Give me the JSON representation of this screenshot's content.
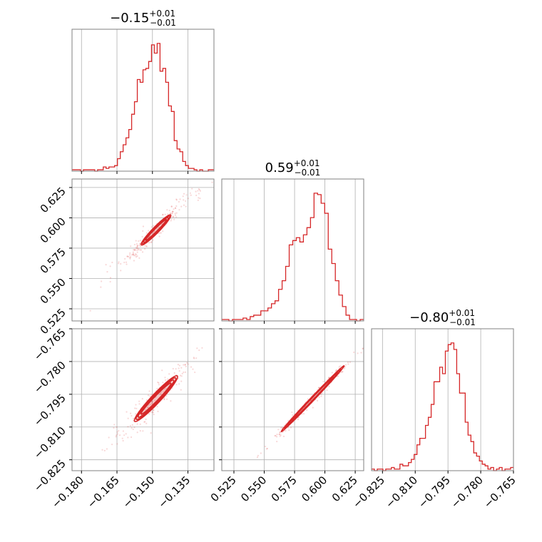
{
  "chart_data": {
    "type": "corner",
    "line_color": "#d62728",
    "grid": true,
    "parameters": [
      {
        "title_value": "−0.15",
        "title_plus": "+0.01",
        "title_minus": "−0.01",
        "range": [
          -0.184,
          -0.124
        ],
        "ticks": [
          -0.18,
          -0.165,
          -0.15,
          -0.135
        ],
        "tick_labels": [
          "−0.180",
          "−0.165",
          "−0.150",
          "−0.135"
        ]
      },
      {
        "title_value": "0.59",
        "title_plus": "+0.01",
        "title_minus": "−0.01",
        "range": [
          0.515,
          0.632
        ],
        "ticks": [
          0.525,
          0.55,
          0.575,
          0.6,
          0.625
        ],
        "tick_labels": [
          "0.525",
          "0.550",
          "0.575",
          "0.600",
          "0.625"
        ]
      },
      {
        "title_value": "−0.80",
        "title_plus": "+0.01",
        "title_minus": "−0.01",
        "range": [
          -0.83,
          -0.765
        ],
        "ticks": [
          -0.825,
          -0.81,
          -0.795,
          -0.78,
          -0.765
        ],
        "tick_labels": [
          "−0.825",
          "−0.810",
          "−0.795",
          "−0.780",
          "−0.765"
        ]
      }
    ],
    "histograms": [
      {
        "param": 0,
        "edges_start": -0.184,
        "edges_end": -0.124,
        "counts": [
          1,
          1,
          1,
          0,
          1,
          1,
          1,
          1,
          0,
          1,
          1,
          3,
          2,
          3,
          3,
          4,
          9,
          14,
          19,
          24,
          30,
          41,
          50,
          66,
          64,
          73,
          74,
          79,
          91,
          85,
          92,
          72,
          74,
          64,
          47,
          43,
          22,
          16,
          14,
          7,
          4,
          2,
          2,
          1,
          0,
          1,
          0,
          0,
          1,
          1
        ]
      },
      {
        "param": 1,
        "edges_start": 0.515,
        "edges_end": 0.632,
        "counts": [
          1,
          1,
          0,
          1,
          1,
          1,
          2,
          1,
          3,
          4,
          4,
          7,
          7,
          9,
          12,
          14,
          22,
          28,
          38,
          53,
          56,
          58,
          55,
          60,
          65,
          72,
          89,
          88,
          82,
          75,
          50,
          40,
          28,
          18,
          10,
          4,
          1,
          1,
          0,
          1
        ]
      },
      {
        "param": 2,
        "edges_start": -0.83,
        "edges_end": -0.765,
        "counts": [
          1,
          0,
          1,
          1,
          0,
          1,
          1,
          2,
          1,
          1,
          4,
          3,
          3,
          5,
          7,
          10,
          16,
          20,
          20,
          28,
          33,
          41,
          55,
          55,
          64,
          60,
          74,
          78,
          79,
          75,
          60,
          48,
          48,
          30,
          22,
          18,
          11,
          9,
          6,
          4,
          3,
          1,
          2,
          0,
          1,
          2,
          0,
          1,
          1,
          2
        ]
      }
    ],
    "pairs": [
      {
        "x_param": 0,
        "y_param": 1,
        "center": [
          -0.1485,
          0.59
        ],
        "slope": 1.9,
        "contours": [
          {
            "half_length": 0.0095,
            "half_width": 0.0016
          },
          {
            "half_length": 0.0112,
            "half_width": 0.0025
          },
          {
            "half_length": 0.0125,
            "half_width": 0.003
          },
          {
            "half_length": 0.0135,
            "half_width": 0.0036
          }
        ],
        "scatter_range": [
          -0.178,
          -0.124
        ]
      },
      {
        "x_param": 0,
        "y_param": 2,
        "center": [
          -0.1485,
          -0.797
        ],
        "slope": 1.1,
        "contours": [
          {
            "half_length": 0.0095,
            "half_width": 0.0014
          },
          {
            "half_length": 0.0112,
            "half_width": 0.002
          },
          {
            "half_length": 0.0125,
            "half_width": 0.0025
          },
          {
            "half_length": 0.0136,
            "half_width": 0.003
          }
        ],
        "scatter_range": [
          -0.176,
          -0.126
        ]
      },
      {
        "x_param": 1,
        "y_param": 2,
        "center": [
          0.59,
          -0.797
        ],
        "slope": 0.58,
        "contours": [
          {
            "half_length": 0.02,
            "half_width": 0.0006
          },
          {
            "half_length": 0.024,
            "half_width": 0.0008
          },
          {
            "half_length": 0.027,
            "half_width": 0.001
          },
          {
            "half_length": 0.03,
            "half_width": 0.0012
          }
        ],
        "scatter_range": [
          0.535,
          0.632
        ]
      }
    ]
  }
}
